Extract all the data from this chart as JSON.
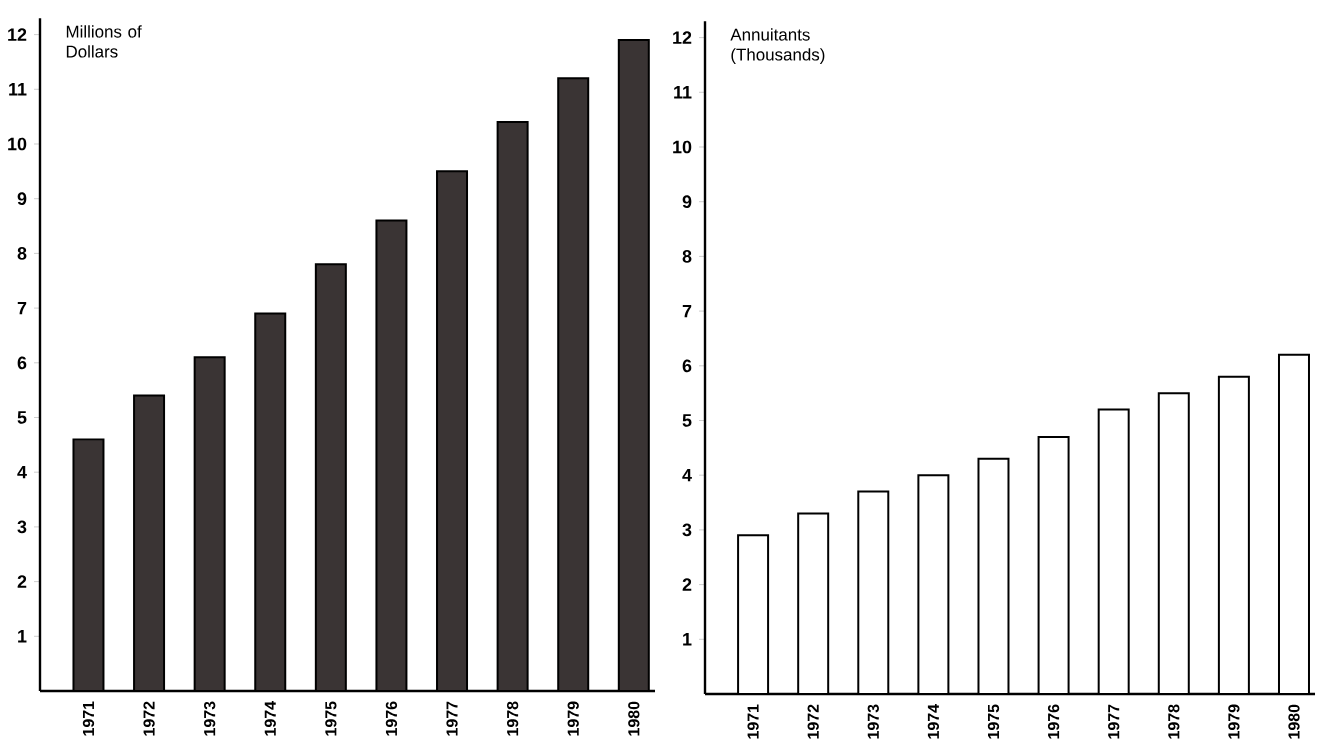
{
  "chart_data": [
    {
      "type": "bar",
      "ylabel": "Millions of Dollars",
      "categories": [
        "1971",
        "1972",
        "1973",
        "1974",
        "1975",
        "1976",
        "1977",
        "1978",
        "1979",
        "1980"
      ],
      "values": [
        4.6,
        5.4,
        6.1,
        6.9,
        7.8,
        8.6,
        9.5,
        10.4,
        11.2,
        11.9
      ],
      "color": "#3a3434",
      "ylim": [
        0,
        12.3
      ],
      "yticks": [
        1,
        2,
        3,
        4,
        5,
        6,
        7,
        8,
        9,
        10,
        11,
        12
      ]
    },
    {
      "type": "bar",
      "ylabel": "Annuitants (Thousands)",
      "categories": [
        "1971",
        "1972",
        "1973",
        "1974",
        "1975",
        "1976",
        "1977",
        "1978",
        "1979",
        "1980"
      ],
      "values": [
        2.9,
        3.3,
        3.7,
        4.0,
        4.3,
        4.7,
        5.2,
        5.5,
        5.8,
        6.2
      ],
      "color": "#ffffff",
      "ylim": [
        0,
        12.3
      ],
      "yticks": [
        1,
        2,
        3,
        4,
        5,
        6,
        7,
        8,
        9,
        10,
        11,
        12
      ]
    }
  ]
}
